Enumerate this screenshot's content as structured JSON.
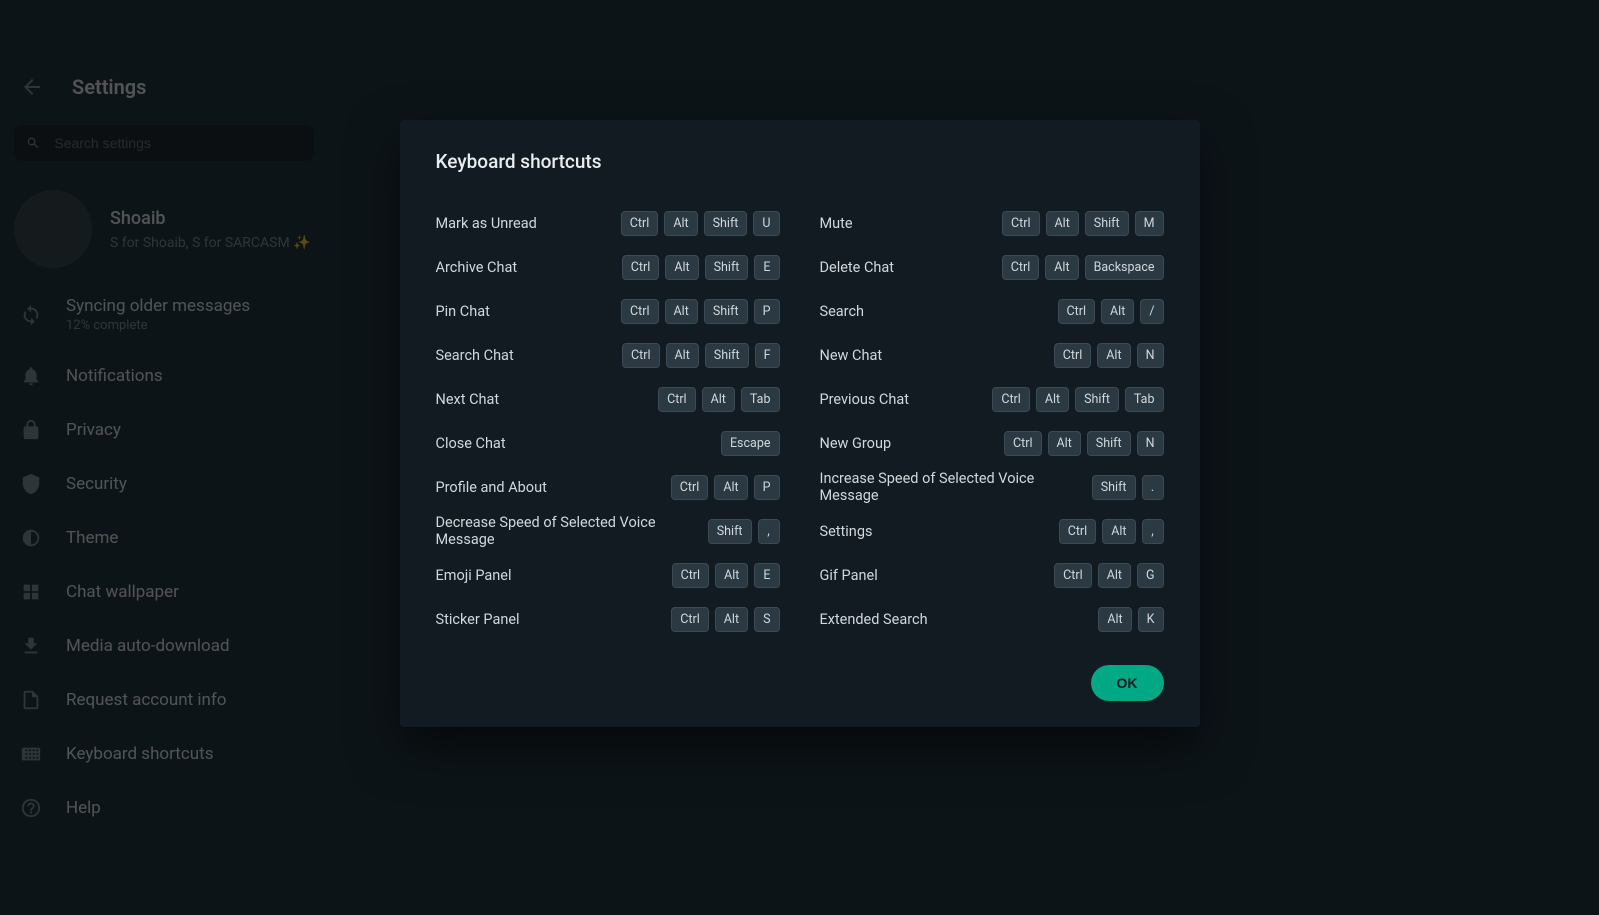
{
  "header": {
    "title": "Settings",
    "search_placeholder": "Search settings"
  },
  "profile": {
    "name": "Shoaib",
    "status": "S for Shoaib, S for SARCASM ✨"
  },
  "sidebar": {
    "items": [
      {
        "icon": "sync",
        "label": "Syncing older messages",
        "sub": "12% complete"
      },
      {
        "icon": "bell",
        "label": "Notifications"
      },
      {
        "icon": "lock",
        "label": "Privacy"
      },
      {
        "icon": "shield",
        "label": "Security"
      },
      {
        "icon": "theme",
        "label": "Theme"
      },
      {
        "icon": "wallpaper",
        "label": "Chat wallpaper"
      },
      {
        "icon": "download",
        "label": "Media auto-download"
      },
      {
        "icon": "doc",
        "label": "Request account info"
      },
      {
        "icon": "keyboard",
        "label": "Keyboard shortcuts"
      },
      {
        "icon": "help",
        "label": "Help"
      }
    ]
  },
  "modal": {
    "title": "Keyboard shortcuts",
    "ok_label": "OK",
    "shortcuts": [
      {
        "label": "Mark as Unread",
        "keys": [
          "Ctrl",
          "Alt",
          "Shift",
          "U"
        ]
      },
      {
        "label": "Mute",
        "keys": [
          "Ctrl",
          "Alt",
          "Shift",
          "M"
        ]
      },
      {
        "label": "Archive Chat",
        "keys": [
          "Ctrl",
          "Alt",
          "Shift",
          "E"
        ]
      },
      {
        "label": "Delete Chat",
        "keys": [
          "Ctrl",
          "Alt",
          "Backspace"
        ]
      },
      {
        "label": "Pin Chat",
        "keys": [
          "Ctrl",
          "Alt",
          "Shift",
          "P"
        ]
      },
      {
        "label": "Search",
        "keys": [
          "Ctrl",
          "Alt",
          "/"
        ]
      },
      {
        "label": "Search Chat",
        "keys": [
          "Ctrl",
          "Alt",
          "Shift",
          "F"
        ]
      },
      {
        "label": "New Chat",
        "keys": [
          "Ctrl",
          "Alt",
          "N"
        ]
      },
      {
        "label": "Next Chat",
        "keys": [
          "Ctrl",
          "Alt",
          "Tab"
        ]
      },
      {
        "label": "Previous Chat",
        "keys": [
          "Ctrl",
          "Alt",
          "Shift",
          "Tab"
        ]
      },
      {
        "label": "Close Chat",
        "keys": [
          "Escape"
        ]
      },
      {
        "label": "New Group",
        "keys": [
          "Ctrl",
          "Alt",
          "Shift",
          "N"
        ]
      },
      {
        "label": "Profile and About",
        "keys": [
          "Ctrl",
          "Alt",
          "P"
        ]
      },
      {
        "label": "Increase Speed of Selected Voice Message",
        "keys": [
          "Shift",
          "."
        ]
      },
      {
        "label": "Decrease Speed of Selected Voice Message",
        "keys": [
          "Shift",
          ","
        ]
      },
      {
        "label": "Settings",
        "keys": [
          "Ctrl",
          "Alt",
          ","
        ]
      },
      {
        "label": "Emoji Panel",
        "keys": [
          "Ctrl",
          "Alt",
          "E"
        ]
      },
      {
        "label": "Gif Panel",
        "keys": [
          "Ctrl",
          "Alt",
          "G"
        ]
      },
      {
        "label": "Sticker Panel",
        "keys": [
          "Ctrl",
          "Alt",
          "S"
        ]
      },
      {
        "label": "Extended Search",
        "keys": [
          "Alt",
          "K"
        ]
      }
    ]
  },
  "colors": {
    "bg": "#0d1418",
    "panel": "#111b21",
    "key_bg": "#2a3942",
    "accent": "#00a884",
    "text": "#d1d7db",
    "text_muted": "#8696a0"
  }
}
